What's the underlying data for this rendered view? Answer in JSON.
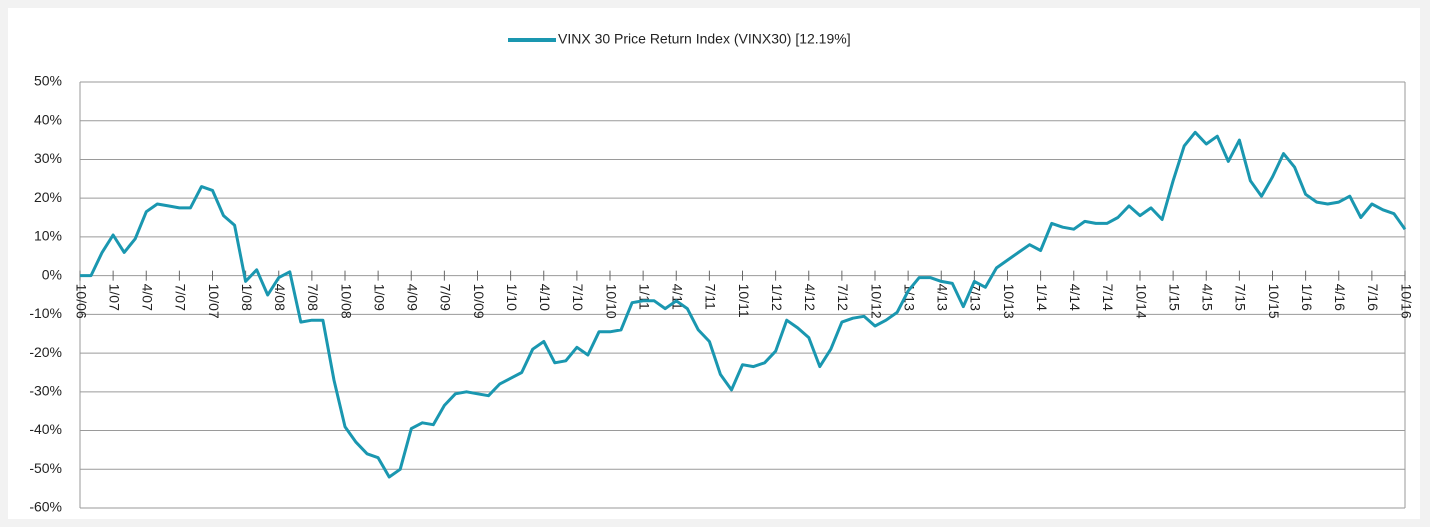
{
  "chart_data": {
    "type": "line",
    "categories": [
      "10/06",
      null,
      null,
      "1/07",
      null,
      null,
      "4/07",
      null,
      null,
      "7/07",
      null,
      null,
      "10/07",
      null,
      null,
      "1/08",
      null,
      null,
      "4/08",
      null,
      null,
      "7/08",
      null,
      null,
      "10/08",
      null,
      null,
      "1/09",
      null,
      null,
      "4/09",
      null,
      null,
      "7/09",
      null,
      null,
      "10/09",
      null,
      null,
      "1/10",
      null,
      null,
      "4/10",
      null,
      null,
      "7/10",
      null,
      null,
      "10/10",
      null,
      null,
      "1/11",
      null,
      null,
      "4/11",
      null,
      null,
      "7/11",
      null,
      null,
      "10/11",
      null,
      null,
      "1/12",
      null,
      null,
      "4/12",
      null,
      null,
      "7/12",
      null,
      null,
      "10/12",
      null,
      null,
      "1/13",
      null,
      null,
      "4/13",
      null,
      null,
      "7/13",
      null,
      null,
      "10/13",
      null,
      null,
      "1/14",
      null,
      null,
      "4/14",
      null,
      null,
      "7/14",
      null,
      null,
      "10/14",
      null,
      null,
      "1/15",
      null,
      null,
      "4/15",
      null,
      null,
      "7/15",
      null,
      null,
      "10/15",
      null,
      null,
      "1/16",
      null,
      null,
      "4/16",
      null,
      null,
      "7/16",
      null,
      null,
      "10/16"
    ],
    "series": [
      {
        "name": "VINX 30 Price Return Index (VINX30) [12.19%]",
        "color": "#1a97b0",
        "values": [
          0,
          0,
          6,
          10.5,
          6,
          9.5,
          16.5,
          18.5,
          18,
          17.5,
          17.5,
          23,
          22,
          15.5,
          13,
          -1.5,
          1.5,
          -5,
          -0.5,
          1,
          -12,
          -11.5,
          -11.5,
          -27,
          -39,
          -43,
          -46,
          -47,
          -52,
          -50,
          -39.5,
          -38,
          -38.5,
          -33.5,
          -30.5,
          -30,
          -30.5,
          -31,
          -28,
          -26.5,
          -25,
          -19,
          -17,
          -22.5,
          -22,
          -18.5,
          -20.5,
          -14.5,
          -14.5,
          -14,
          -7,
          -6.5,
          -6.5,
          -8.5,
          -6.5,
          -8.5,
          -14,
          -17,
          -25.5,
          -29.5,
          -23,
          -23.5,
          -22.5,
          -19.5,
          -11.5,
          -13.5,
          -16,
          -23.5,
          -19,
          -12,
          -11,
          -10.5,
          -13,
          -11.5,
          -9.5,
          -4,
          -0.5,
          -0.5,
          -1.5,
          -2,
          -8,
          -1.5,
          -3,
          2,
          4,
          6,
          8,
          6.5,
          13.5,
          12.5,
          12,
          14,
          13.5,
          13.5,
          15,
          18,
          15.5,
          17.5,
          14.5,
          24.5,
          33.5,
          37,
          34,
          36,
          29.5,
          35,
          24.5,
          20.5,
          25.5,
          31.5,
          28,
          21,
          19,
          18.5,
          19,
          20.5,
          15,
          18.5,
          17,
          16,
          12
        ]
      }
    ],
    "ylim": [
      -60,
      50
    ],
    "yticks": [
      {
        "value": -60,
        "label": "-60%"
      },
      {
        "value": -50,
        "label": "-50%"
      },
      {
        "value": -40,
        "label": "-40%"
      },
      {
        "value": -30,
        "label": "-30%"
      },
      {
        "value": -20,
        "label": "-20%"
      },
      {
        "value": -10,
        "label": "-10%"
      },
      {
        "value": 0,
        "label": "0%"
      },
      {
        "value": 10,
        "label": "10%"
      },
      {
        "value": 20,
        "label": "20%"
      },
      {
        "value": 30,
        "label": "30%"
      },
      {
        "value": 40,
        "label": "40%"
      },
      {
        "value": 50,
        "label": "50%"
      }
    ],
    "grid": true,
    "legend": "top"
  }
}
